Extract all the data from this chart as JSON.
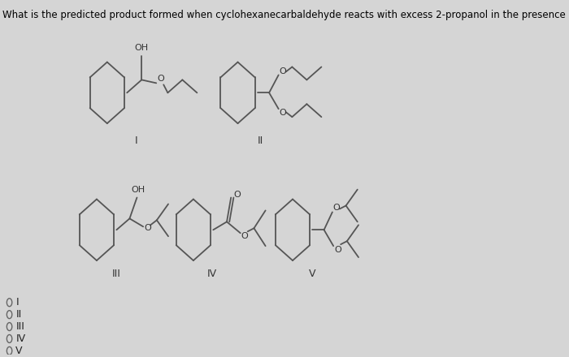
{
  "question": "What is the predicted product formed when cyclohexanecarbaldehyde reacts with excess 2-propanol in the presence of sulfuric acid?",
  "background_color": "#d5d5d5",
  "text_color": "#000000",
  "question_fontsize": 8.5,
  "choices": [
    "I",
    "II",
    "III",
    "IV",
    "V"
  ],
  "bond_color": "#555555",
  "label_color": "#333333"
}
